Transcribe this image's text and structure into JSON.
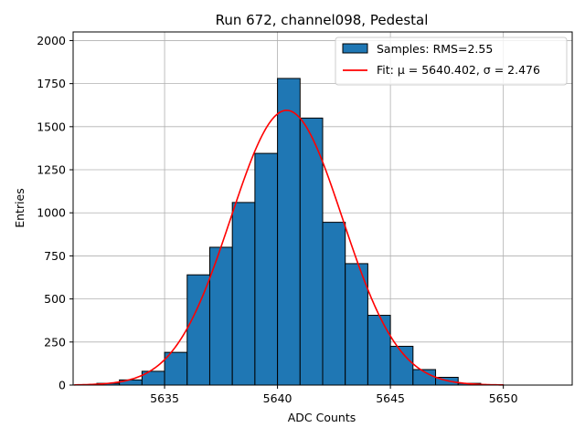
{
  "chart_data": {
    "type": "bar",
    "title": "Run 672, channel098, Pedestal",
    "xlabel": "ADC Counts",
    "ylabel": "Entries",
    "xlim": [
      5630.95,
      5653.05
    ],
    "ylim": [
      0,
      2050
    ],
    "grid": true,
    "legend_position": "top-right",
    "xticks": [
      5635,
      5640,
      5645,
      5650
    ],
    "yticks": [
      0,
      250,
      500,
      750,
      1000,
      1250,
      1500,
      1750,
      2000
    ],
    "histogram": {
      "bin_edges": [
        5632,
        5633,
        5634,
        5635,
        5636,
        5637,
        5638,
        5639,
        5640,
        5641,
        5642,
        5643,
        5644,
        5645,
        5646,
        5647,
        5648,
        5649,
        5650,
        5651,
        5652
      ],
      "counts": [
        10,
        30,
        80,
        190,
        640,
        800,
        1060,
        1345,
        1780,
        1550,
        945,
        705,
        405,
        225,
        90,
        45,
        10,
        2,
        0,
        0
      ],
      "color": "#1f77b4",
      "edgecolor": "#000000"
    },
    "fit": {
      "mu": 5640.402,
      "sigma": 2.476,
      "peak": 1595,
      "x_range": [
        5631,
        5650
      ],
      "color": "#ff0000"
    },
    "legend": [
      {
        "label": "Samples: RMS=2.55",
        "kind": "patch",
        "color": "#1f77b4"
      },
      {
        "label": "Fit: μ = 5640.402, σ = 2.476",
        "kind": "line",
        "color": "#ff0000"
      }
    ]
  }
}
